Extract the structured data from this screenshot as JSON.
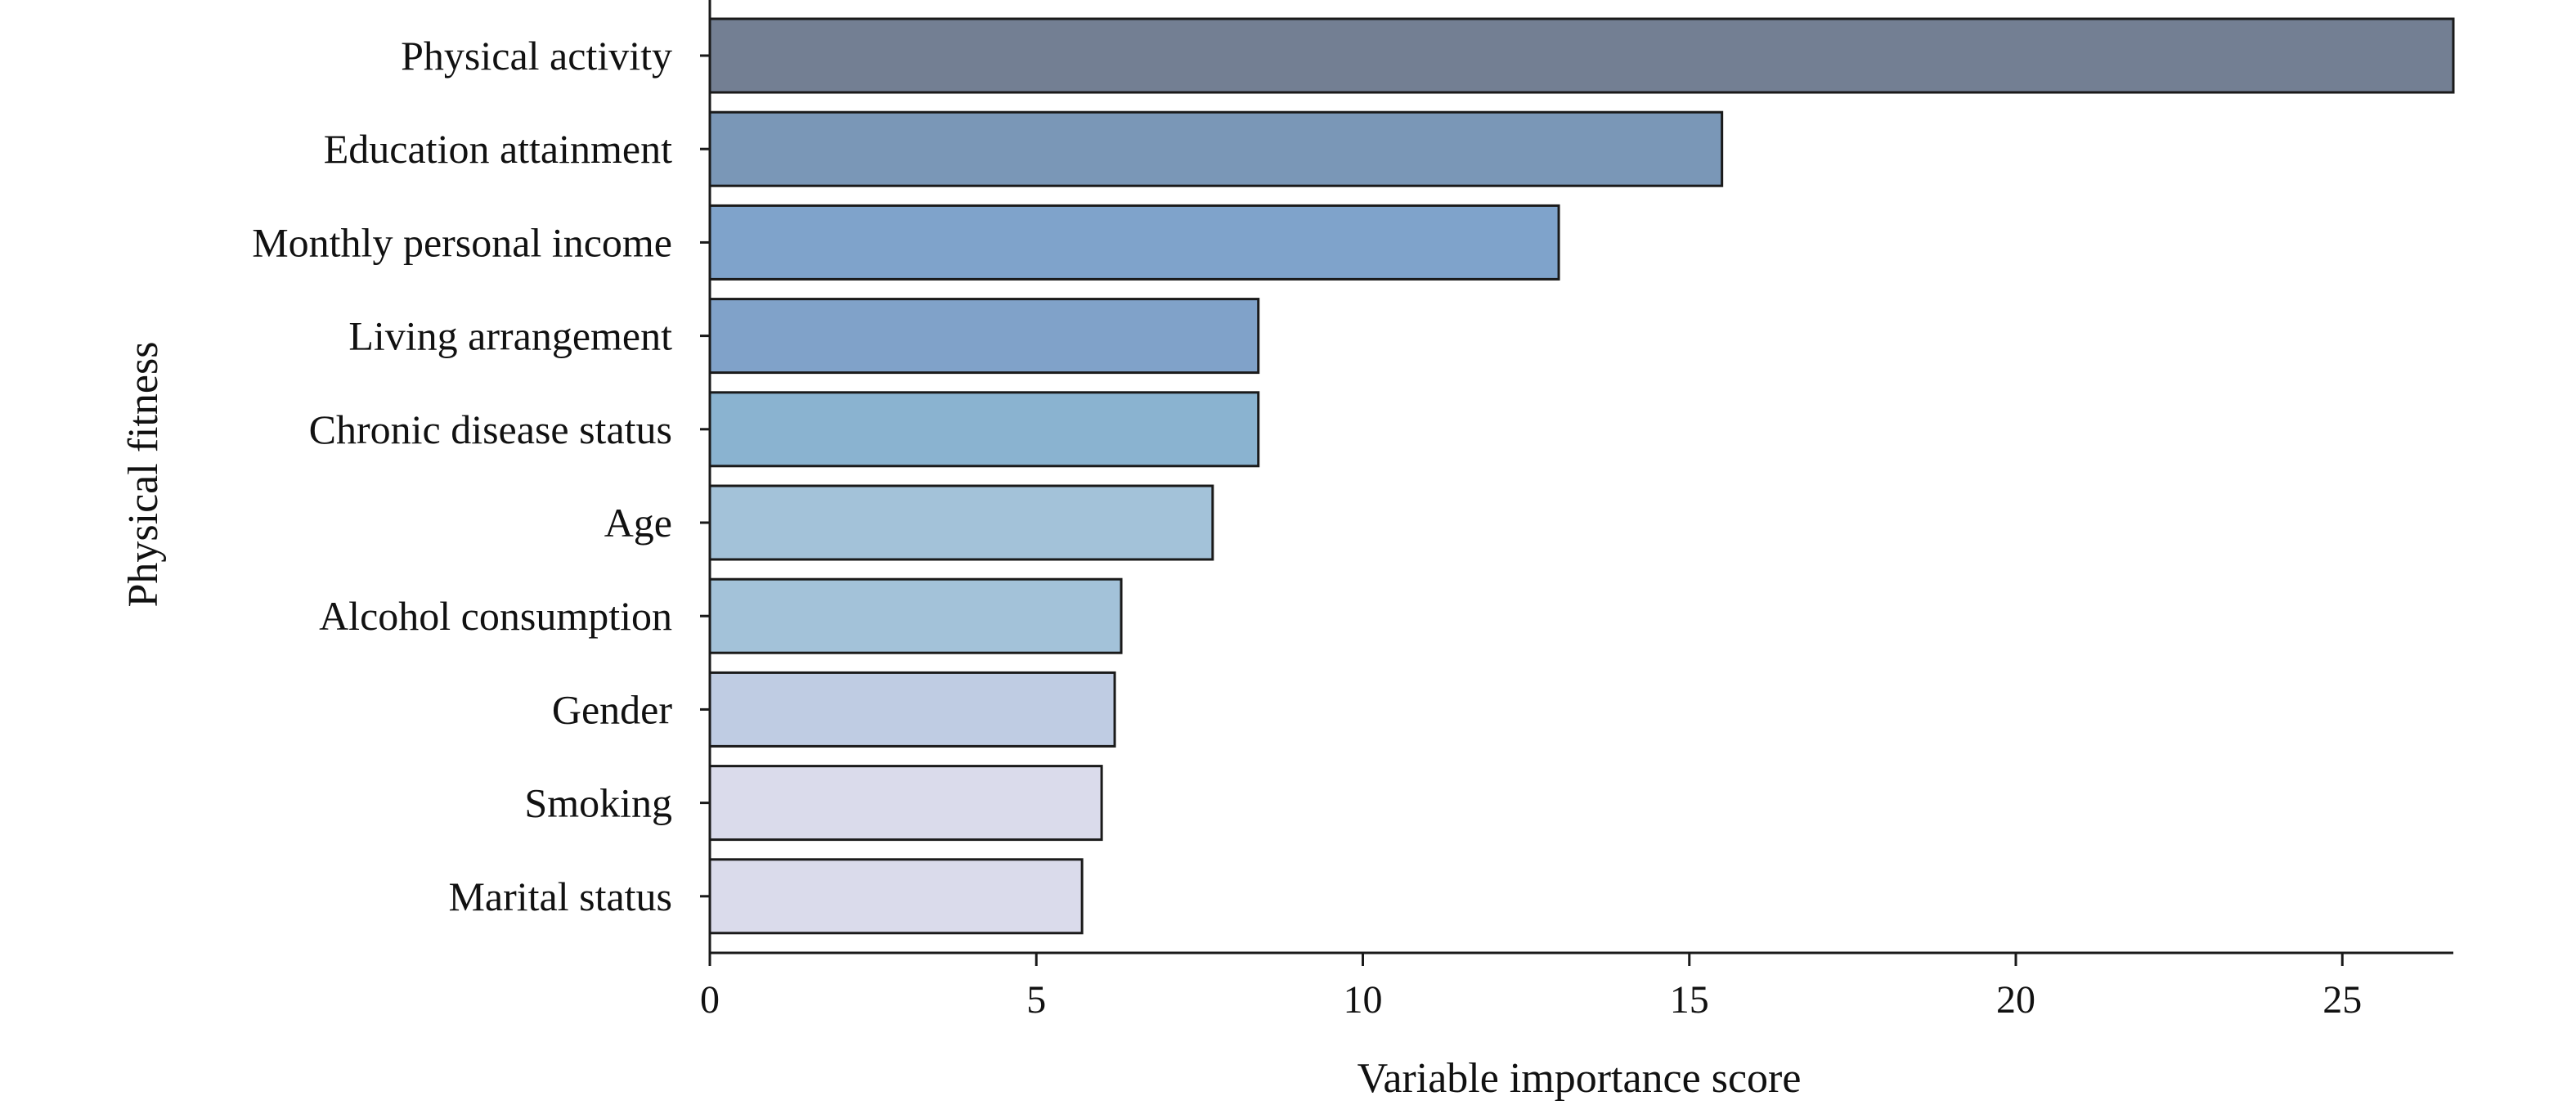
{
  "chart_data": {
    "type": "bar",
    "orientation": "horizontal",
    "categories": [
      "Physical activity",
      "Education attainment",
      "Monthly personal income",
      "Living arrangement",
      "Chronic disease status",
      "Age",
      "Alcohol consumption",
      "Gender",
      "Smoking",
      "Marital status"
    ],
    "values": [
      26.7,
      15.5,
      13.0,
      8.4,
      8.4,
      7.7,
      6.3,
      6.2,
      6.0,
      5.7
    ],
    "colors": [
      "#737f93",
      "#7a97b7",
      "#7fa3cb",
      "#80a2c9",
      "#8ab3d0",
      "#a3c2d9",
      "#a3c2d9",
      "#bfcce3",
      "#dadbeb",
      "#dadbeb"
    ],
    "xlabel": "Variable importance score",
    "ylabel": "Physical fitness",
    "xlim": [
      0,
      26.7
    ],
    "xticks": [
      0,
      5,
      10,
      15,
      20,
      25
    ],
    "xtick_labels": [
      "0",
      "5",
      "10",
      "15",
      "20",
      "25"
    ],
    "grid": false,
    "legend": "none"
  }
}
